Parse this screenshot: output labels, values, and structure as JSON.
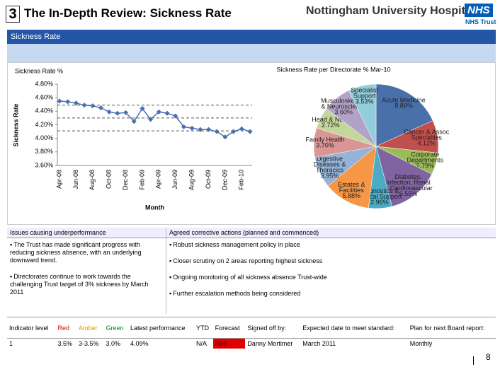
{
  "header": {
    "number": "3",
    "title": "The In-Depth Review: Sickness Rate",
    "org_name": "Nottingham University Hospitals",
    "org_badge": "NHS",
    "org_sub": "NHS Trust"
  },
  "banner": "Sickness Rate",
  "chart_data": [
    {
      "type": "line",
      "title": "Sickness Rate %",
      "y_label": "Sickness Rate",
      "x_label": "Month",
      "categories": [
        "Apr-08",
        null,
        "Jun-08",
        null,
        "Aug-08",
        null,
        "Oct-08",
        null,
        "Dec-08",
        null,
        "Feb-09",
        null,
        "Apr-09",
        null,
        "Jun-09",
        null,
        "Aug-09",
        null,
        "Oct-09",
        null,
        "Dec-09",
        null,
        "Feb-10",
        null
      ],
      "values": [
        4.55,
        4.54,
        4.52,
        4.49,
        4.48,
        4.45,
        4.39,
        4.37,
        4.38,
        4.25,
        4.44,
        4.28,
        4.39,
        4.37,
        4.33,
        4.17,
        4.15,
        4.13,
        4.13,
        4.1,
        4.02,
        4.1,
        4.14,
        4.1
      ],
      "color": "#4a6fb0",
      "reference_lines": [
        4.49,
        4.3,
        4.11
      ],
      "ylim": [
        3.6,
        4.8
      ],
      "yticks": [
        {
          "value": 3.6,
          "label": "3.60%"
        },
        {
          "value": 3.8,
          "label": "3.80%"
        },
        {
          "value": 4.0,
          "label": "4.00%"
        },
        {
          "value": 4.2,
          "label": "4.20%"
        },
        {
          "value": 4.4,
          "label": "4.40%"
        },
        {
          "value": 4.6,
          "label": "4.60%"
        },
        {
          "value": 4.8,
          "label": "4.80%"
        }
      ],
      "grid": false
    },
    {
      "type": "pie",
      "title": "Sickness Rate per Directorate % Mar-10",
      "categories": [
        "Acute Medicine",
        "Cancer & Assoc Specialties",
        "Corporate Departments",
        "Diabetes, Infection, Renal & Cardiovascular",
        "Diagnostics & Clinical Support",
        "Estates & Facilities",
        "Digestive Diseases & Thoracics",
        "Family Health",
        "Head & Neck",
        "Musculoskeletal & Neuroscience",
        "Specialist Support"
      ],
      "values": [
        8.86,
        4.12,
        2.79,
        6.55,
        2.96,
        5.88,
        3.95,
        3.7,
        2.72,
        3.6,
        3.53
      ],
      "value_labels": [
        "8.86%",
        "4.12%",
        "2.79%",
        "6.55%",
        "2.96%",
        "5.88%",
        "3.95%",
        "3.70%",
        "2.72%",
        "3.60%",
        "3.53%"
      ],
      "colors": [
        "#4a70aa",
        "#c0504d",
        "#9bbb59",
        "#8064a2",
        "#4bacc6",
        "#f79646",
        "#95b3d7",
        "#d99694",
        "#c3d69b",
        "#b3a2c7",
        "#92cddc"
      ]
    }
  ],
  "issues": {
    "heading": "Issues causing underperformance",
    "items": [
      "The Trust has made significant progress with reducing sickness absence, with an underlying downward trend.",
      "Directorates continue to work towards the challenging Trust target of 3% sickness by March 2011"
    ]
  },
  "actions": {
    "heading": "Agreed corrective actions (planned and commenced)",
    "items": [
      "Robust sickness management policy in place",
      "Closer scrutiny on 2 areas reporting highest sickness",
      "Ongoing monitoring of all sickness absence Trust-wide",
      "Further escalation methods being considered"
    ]
  },
  "table": {
    "header": [
      "Indicator level",
      "Red",
      "Amber",
      "Green",
      "Latest performance",
      "YTD",
      "Forecast",
      "Signed off by:",
      "Expected date to meet standard:",
      "Plan for next Board report:"
    ],
    "rows": [
      [
        "1",
        "3.5%",
        "3-3.5%",
        "3.0%",
        "4.09%",
        "N/A",
        "Red",
        "Danny Mortimer",
        "March 2011",
        "Monthly"
      ]
    ]
  },
  "page_number": "8"
}
